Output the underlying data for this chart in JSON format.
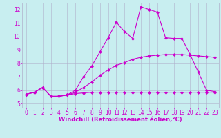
{
  "background_color": "#c8eef0",
  "grid_color": "#b0b0cc",
  "line_color": "#cc00cc",
  "markersize": 2.5,
  "linewidth": 0.8,
  "xlabel": "Windchill (Refroidissement éolien,°C)",
  "xlabel_fontsize": 6,
  "tick_fontsize": 5.5,
  "ylabel_ticks": [
    5,
    6,
    7,
    8,
    9,
    10,
    11,
    12
  ],
  "xlabel_ticks": [
    0,
    1,
    2,
    3,
    4,
    5,
    6,
    7,
    8,
    9,
    10,
    11,
    12,
    13,
    14,
    15,
    16,
    17,
    18,
    19,
    20,
    21,
    22,
    23
  ],
  "ylim": [
    4.7,
    12.5
  ],
  "xlim": [
    -0.5,
    23.5
  ],
  "line1_x": [
    0,
    1,
    2,
    3,
    4,
    5,
    6,
    7,
    8,
    9,
    10,
    11,
    12,
    13,
    14,
    15,
    16,
    17,
    18,
    19,
    20,
    21,
    22,
    23
  ],
  "line1_y": [
    5.7,
    5.85,
    6.2,
    5.55,
    5.55,
    5.65,
    5.75,
    5.8,
    5.85,
    5.85,
    5.85,
    5.85,
    5.85,
    5.85,
    5.85,
    5.85,
    5.85,
    5.85,
    5.85,
    5.85,
    5.85,
    5.85,
    5.85,
    5.85
  ],
  "line2_x": [
    0,
    1,
    2,
    3,
    4,
    5,
    6,
    7,
    8,
    9,
    10,
    11,
    12,
    13,
    14,
    15,
    16,
    17,
    18,
    19,
    20,
    21,
    22,
    23
  ],
  "line2_y": [
    5.7,
    5.85,
    6.2,
    5.55,
    5.55,
    5.65,
    5.85,
    6.2,
    6.6,
    7.1,
    7.5,
    7.85,
    8.05,
    8.3,
    8.45,
    8.55,
    8.6,
    8.65,
    8.65,
    8.65,
    8.6,
    8.55,
    8.5,
    8.45
  ],
  "line3_x": [
    0,
    1,
    2,
    3,
    4,
    5,
    6,
    7,
    8,
    9,
    10,
    11,
    12,
    13,
    14,
    15,
    16,
    17,
    18,
    19,
    20,
    21,
    22,
    23
  ],
  "line3_y": [
    5.7,
    5.85,
    6.2,
    5.55,
    5.55,
    5.65,
    6.0,
    7.0,
    7.8,
    8.85,
    9.9,
    11.05,
    10.35,
    9.85,
    12.2,
    12.0,
    11.8,
    9.9,
    9.85,
    9.85,
    8.65,
    7.35,
    6.0,
    5.9
  ]
}
